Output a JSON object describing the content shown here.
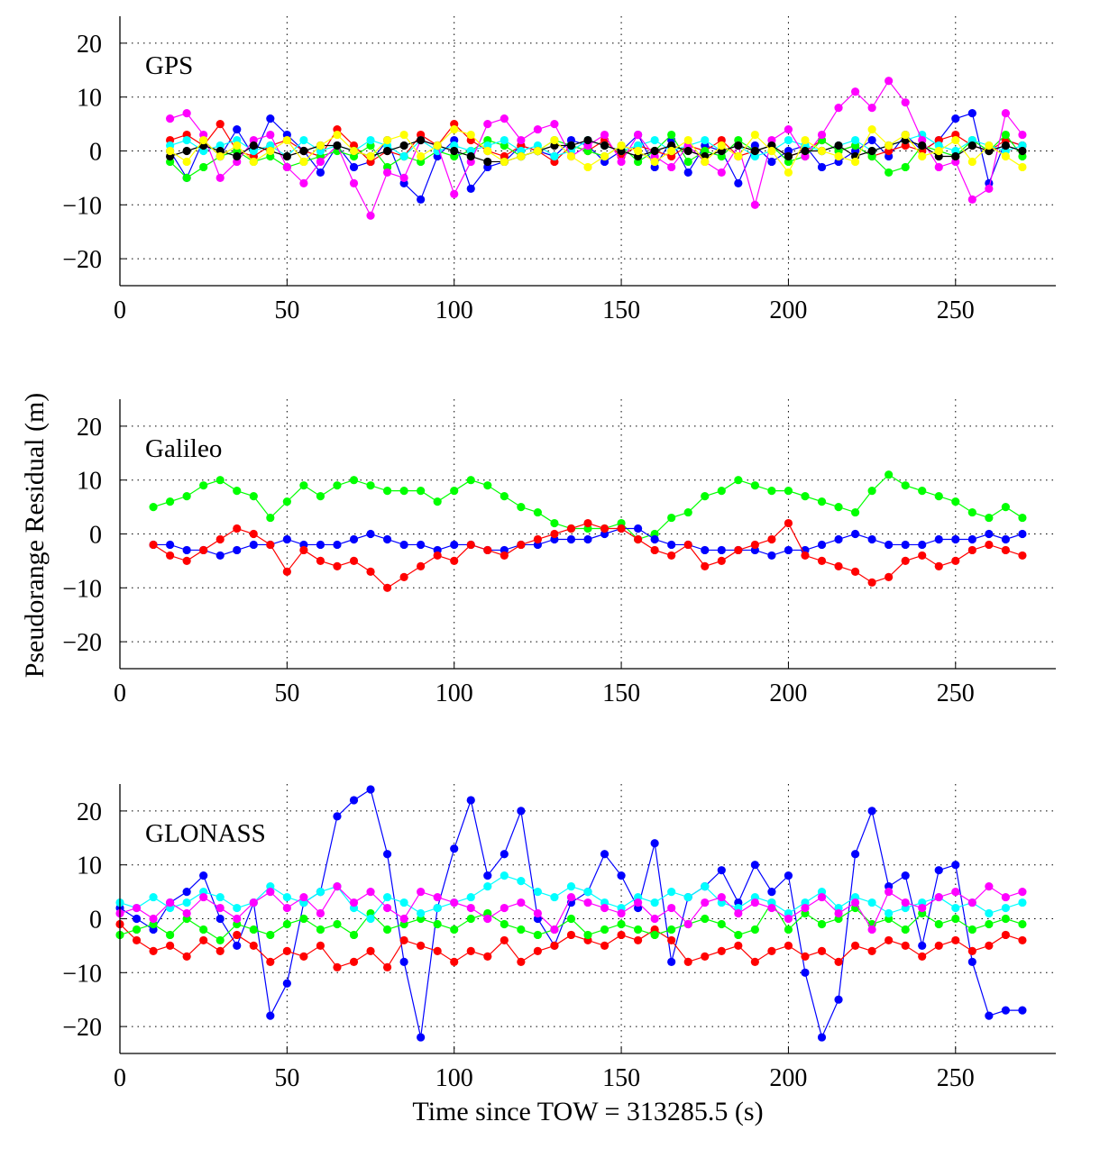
{
  "chart_data": [
    {
      "type": "line",
      "panel_label": "GPS",
      "xlim": [
        0,
        280
      ],
      "ylim": [
        -25,
        25
      ],
      "xticks": [
        0,
        50,
        100,
        150,
        200,
        250
      ],
      "yticks": [
        -20,
        -10,
        0,
        10,
        20
      ],
      "grid": true,
      "markers": "filled-circle",
      "x": [
        15,
        20,
        25,
        30,
        35,
        40,
        45,
        50,
        55,
        60,
        65,
        70,
        75,
        80,
        85,
        90,
        95,
        100,
        105,
        110,
        115,
        120,
        125,
        130,
        135,
        140,
        145,
        150,
        155,
        160,
        165,
        170,
        175,
        180,
        185,
        190,
        195,
        200,
        205,
        210,
        215,
        220,
        225,
        230,
        235,
        240,
        245,
        250,
        255,
        260,
        265,
        270
      ],
      "series": [
        {
          "color": "#0000ff",
          "values": [
            0,
            -5,
            2,
            -1,
            4,
            -1,
            6,
            3,
            0,
            -4,
            1,
            -3,
            -2,
            2,
            -6,
            -9,
            -1,
            2,
            -7,
            -3,
            -2,
            1,
            0,
            -1,
            2,
            1,
            -2,
            0,
            3,
            -3,
            2,
            -4,
            1,
            0,
            -6,
            1,
            -2,
            0,
            1,
            -3,
            -2,
            0,
            2,
            -1,
            3,
            0,
            2,
            6,
            7,
            -6,
            2,
            1
          ]
        },
        {
          "color": "#ff0000",
          "values": [
            2,
            3,
            1,
            5,
            0,
            -1,
            1,
            2,
            0,
            -1,
            4,
            1,
            -2,
            0,
            -1,
            3,
            1,
            5,
            2,
            0,
            -1,
            1,
            0,
            -2,
            1,
            0,
            2,
            -1,
            1,
            0,
            -1,
            1,
            0,
            2,
            -1,
            0,
            1,
            -1,
            0,
            2,
            0,
            1,
            -1,
            0,
            1,
            0,
            2,
            3,
            1,
            0,
            2,
            1
          ]
        },
        {
          "color": "#00ff00",
          "values": [
            -2,
            -5,
            -3,
            -1,
            0,
            -2,
            -1,
            -3,
            -2,
            -1,
            0,
            -1,
            1,
            -3,
            -1,
            -2,
            0,
            -1,
            0,
            2,
            1,
            -1,
            0,
            2,
            1,
            0,
            -1,
            1,
            -2,
            0,
            3,
            -2,
            0,
            -1,
            2,
            0,
            1,
            -2,
            -1,
            2,
            0,
            1,
            -1,
            -4,
            -3,
            1,
            0,
            -1,
            2,
            0,
            3,
            -1
          ]
        },
        {
          "color": "#00ffff",
          "values": [
            1,
            2,
            0,
            1,
            2,
            0,
            1,
            -1,
            2,
            0,
            1,
            0,
            2,
            1,
            -1,
            2,
            0,
            1,
            0,
            1,
            2,
            0,
            1,
            -1,
            0,
            2,
            1,
            0,
            1,
            2,
            0,
            1,
            2,
            0,
            1,
            -1,
            0,
            2,
            1,
            0,
            1,
            2,
            0,
            1,
            2,
            3,
            1,
            0,
            2,
            1,
            0,
            1
          ]
        },
        {
          "color": "#ff00ff",
          "values": [
            6,
            7,
            3,
            -5,
            -2,
            2,
            3,
            -3,
            -6,
            -2,
            1,
            -6,
            -12,
            -4,
            -5,
            2,
            1,
            -8,
            -2,
            5,
            6,
            2,
            4,
            5,
            -1,
            1,
            3,
            -2,
            3,
            -1,
            -3,
            1,
            -2,
            -4,
            1,
            -10,
            2,
            4,
            -1,
            3,
            8,
            11,
            8,
            13,
            9,
            2,
            -3,
            -2,
            -9,
            -7,
            7,
            3
          ]
        },
        {
          "color": "#000000",
          "values": [
            -1,
            0,
            1,
            0,
            -1,
            1,
            0,
            -1,
            0,
            1,
            1,
            0,
            -1,
            0,
            1,
            2,
            1,
            0,
            -1,
            -2,
            -2,
            -1,
            0,
            1,
            1,
            2,
            1,
            0,
            -1,
            0,
            1,
            0,
            -1,
            0,
            1,
            0,
            1,
            -1,
            0,
            0,
            1,
            -1,
            0,
            1,
            2,
            1,
            -1,
            -1,
            1,
            0,
            1,
            0
          ]
        },
        {
          "color": "#ffff00",
          "values": [
            0,
            -2,
            2,
            -1,
            1,
            -2,
            0,
            2,
            -2,
            1,
            3,
            0,
            -1,
            2,
            3,
            -1,
            1,
            4,
            3,
            0,
            -2,
            -1,
            0,
            2,
            -1,
            -3,
            -1,
            1,
            0,
            -2,
            0,
            2,
            -2,
            1,
            -1,
            3,
            0,
            -4,
            2,
            0,
            -1,
            -2,
            4,
            1,
            3,
            -1,
            0,
            2,
            -2,
            1,
            -1,
            -3
          ]
        }
      ]
    },
    {
      "type": "line",
      "panel_label": "Galileo",
      "xlim": [
        0,
        280
      ],
      "ylim": [
        -25,
        25
      ],
      "xticks": [
        0,
        50,
        100,
        150,
        200,
        250
      ],
      "yticks": [
        -20,
        -10,
        0,
        10,
        20
      ],
      "grid": true,
      "markers": "filled-circle",
      "x": [
        10,
        15,
        20,
        25,
        30,
        35,
        40,
        45,
        50,
        55,
        60,
        65,
        70,
        75,
        80,
        85,
        90,
        95,
        100,
        105,
        110,
        115,
        120,
        125,
        130,
        135,
        140,
        145,
        150,
        155,
        160,
        165,
        170,
        175,
        180,
        185,
        190,
        195,
        200,
        205,
        210,
        215,
        220,
        225,
        230,
        235,
        240,
        245,
        250,
        255,
        260,
        265,
        270
      ],
      "series": [
        {
          "color": "#00ff00",
          "values": [
            5,
            6,
            7,
            9,
            10,
            8,
            7,
            3,
            6,
            9,
            7,
            9,
            10,
            9,
            8,
            8,
            8,
            6,
            8,
            10,
            9,
            7,
            5,
            4,
            2,
            1,
            1,
            1,
            2,
            -1,
            0,
            3,
            4,
            7,
            8,
            10,
            9,
            8,
            8,
            7,
            6,
            5,
            4,
            8,
            11,
            9,
            8,
            7,
            6,
            4,
            3,
            5,
            3
          ]
        },
        {
          "color": "#0000ff",
          "values": [
            -2,
            -2,
            -3,
            -3,
            -4,
            -3,
            -2,
            -2,
            -1,
            -2,
            -2,
            -2,
            -1,
            0,
            -1,
            -2,
            -2,
            -3,
            -2,
            -2,
            -3,
            -3,
            -2,
            -2,
            -1,
            -1,
            -1,
            0,
            1,
            1,
            -1,
            -2,
            -2,
            -3,
            -3,
            -3,
            -3,
            -4,
            -3,
            -3,
            -2,
            -1,
            0,
            -1,
            -2,
            -2,
            -2,
            -1,
            -1,
            -1,
            0,
            -1,
            0
          ]
        },
        {
          "color": "#ff0000",
          "values": [
            -2,
            -4,
            -5,
            -3,
            -1,
            1,
            0,
            -2,
            -7,
            -3,
            -5,
            -6,
            -5,
            -7,
            -10,
            -8,
            -6,
            -4,
            -5,
            -2,
            -3,
            -4,
            -2,
            -1,
            0,
            1,
            2,
            1,
            1,
            -1,
            -3,
            -4,
            -2,
            -6,
            -5,
            -3,
            -2,
            -1,
            2,
            -4,
            -5,
            -6,
            -7,
            -9,
            -8,
            -5,
            -4,
            -6,
            -5,
            -3,
            -2,
            -3,
            -4
          ]
        }
      ]
    },
    {
      "type": "line",
      "panel_label": "GLONASS",
      "xlim": [
        0,
        280
      ],
      "ylim": [
        -25,
        25
      ],
      "xticks": [
        0,
        50,
        100,
        150,
        200,
        250
      ],
      "yticks": [
        -20,
        -10,
        0,
        10,
        20
      ],
      "grid": true,
      "markers": "filled-circle",
      "x": [
        0,
        5,
        10,
        15,
        20,
        25,
        30,
        35,
        40,
        45,
        50,
        55,
        60,
        65,
        70,
        75,
        80,
        85,
        90,
        95,
        100,
        105,
        110,
        115,
        120,
        125,
        130,
        135,
        140,
        145,
        150,
        155,
        160,
        165,
        170,
        175,
        180,
        185,
        190,
        195,
        200,
        205,
        210,
        215,
        220,
        225,
        230,
        235,
        240,
        245,
        250,
        255,
        260,
        265,
        270
      ],
      "series": [
        {
          "color": "#0000ff",
          "values": [
            2,
            0,
            -2,
            3,
            5,
            8,
            0,
            -5,
            3,
            -18,
            -12,
            3,
            5,
            19,
            22,
            24,
            12,
            -8,
            -22,
            2,
            13,
            22,
            8,
            12,
            20,
            0,
            -5,
            3,
            5,
            12,
            8,
            2,
            14,
            -8,
            4,
            6,
            9,
            3,
            10,
            5,
            8,
            -10,
            -22,
            -15,
            12,
            20,
            6,
            8,
            -5,
            9,
            10,
            -8,
            -18,
            -17,
            -17
          ]
        },
        {
          "color": "#ff0000",
          "values": [
            -1,
            -4,
            -6,
            -5,
            -7,
            -4,
            -6,
            -3,
            -5,
            -8,
            -6,
            -7,
            -5,
            -9,
            -8,
            -6,
            -9,
            -4,
            -5,
            -6,
            -8,
            -6,
            -7,
            -4,
            -8,
            -6,
            -5,
            -3,
            -4,
            -5,
            -3,
            -4,
            -2,
            -4,
            -8,
            -7,
            -6,
            -5,
            -8,
            -6,
            -5,
            -7,
            -6,
            -8,
            -5,
            -6,
            -4,
            -5,
            -7,
            -5,
            -4,
            -6,
            -5,
            -3,
            -4
          ]
        },
        {
          "color": "#00ff00",
          "values": [
            -3,
            -2,
            -1,
            -3,
            0,
            -2,
            -4,
            -1,
            -2,
            -3,
            -1,
            0,
            -2,
            -1,
            -3,
            1,
            -2,
            -1,
            0,
            -1,
            -2,
            0,
            1,
            -1,
            -2,
            -3,
            -2,
            0,
            -3,
            -2,
            -1,
            -2,
            -3,
            -2,
            -1,
            0,
            -1,
            -3,
            -2,
            3,
            -2,
            1,
            -1,
            0,
            2,
            -1,
            0,
            -2,
            1,
            -1,
            0,
            -2,
            -1,
            0,
            -1
          ]
        },
        {
          "color": "#00ffff",
          "values": [
            3,
            2,
            4,
            2,
            3,
            5,
            4,
            2,
            3,
            6,
            4,
            3,
            5,
            6,
            2,
            0,
            4,
            3,
            1,
            2,
            3,
            4,
            6,
            8,
            7,
            5,
            4,
            6,
            5,
            3,
            2,
            4,
            3,
            5,
            4,
            6,
            3,
            2,
            4,
            3,
            1,
            3,
            5,
            2,
            4,
            3,
            1,
            2,
            3,
            4,
            2,
            3,
            1,
            2,
            3
          ]
        },
        {
          "color": "#ff00ff",
          "values": [
            1,
            2,
            0,
            3,
            1,
            4,
            2,
            0,
            3,
            5,
            2,
            4,
            1,
            6,
            3,
            5,
            2,
            0,
            5,
            4,
            3,
            2,
            0,
            2,
            3,
            1,
            -2,
            4,
            3,
            2,
            1,
            3,
            0,
            2,
            -1,
            3,
            4,
            1,
            3,
            2,
            0,
            2,
            4,
            1,
            3,
            -2,
            5,
            3,
            2,
            4,
            5,
            3,
            6,
            4,
            5
          ]
        }
      ]
    }
  ],
  "ylabel": "Pseudorange Residual (m)",
  "xlabel": "Time since TOW =  313285.5 (s)"
}
